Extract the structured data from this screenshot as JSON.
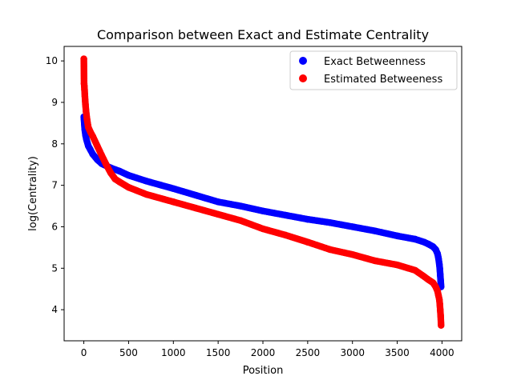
{
  "chart_data": {
    "type": "scatter",
    "title": "Comparison between Exact and Estimate Centrality",
    "xlabel": "Position",
    "ylabel": "log(Centrality)",
    "xlim": [
      -220,
      4220
    ],
    "ylim": [
      3.25,
      10.35
    ],
    "x_ticks": [
      0,
      500,
      1000,
      1500,
      2000,
      2500,
      3000,
      3500,
      4000
    ],
    "y_ticks": [
      4,
      5,
      6,
      7,
      8,
      9,
      10
    ],
    "legend_position": "top-right",
    "grid": false,
    "series": [
      {
        "name": "Exact Betweenness",
        "color": "#0000ff",
        "x": [
          0,
          5,
          10,
          20,
          30,
          50,
          75,
          100,
          150,
          200,
          250,
          300,
          350,
          400,
          500,
          700,
          1000,
          1250,
          1500,
          1750,
          2000,
          2250,
          2500,
          2750,
          3000,
          3250,
          3500,
          3700,
          3800,
          3850,
          3900,
          3930,
          3950,
          3960,
          3970,
          3975,
          3980,
          3985,
          3990
        ],
        "y": [
          8.65,
          8.5,
          8.35,
          8.2,
          8.1,
          7.95,
          7.85,
          7.75,
          7.62,
          7.52,
          7.47,
          7.42,
          7.38,
          7.34,
          7.24,
          7.1,
          6.92,
          6.76,
          6.6,
          6.5,
          6.38,
          6.28,
          6.18,
          6.1,
          6.0,
          5.9,
          5.78,
          5.7,
          5.63,
          5.58,
          5.52,
          5.45,
          5.35,
          5.25,
          5.1,
          5.0,
          4.85,
          4.7,
          4.55
        ]
      },
      {
        "name": "Estimated Betweeness",
        "color": "#ff0000",
        "x": [
          0,
          3,
          5,
          8,
          12,
          18,
          25,
          35,
          50,
          75,
          100,
          150,
          200,
          250,
          300,
          350,
          400,
          500,
          700,
          1000,
          1250,
          1500,
          1750,
          2000,
          2250,
          2500,
          2750,
          3000,
          3250,
          3500,
          3700,
          3800,
          3850,
          3900,
          3930,
          3950,
          3960,
          3970,
          3975,
          3980,
          3985,
          3990
        ],
        "y": [
          10.05,
          9.45,
          9.4,
          9.3,
          9.15,
          8.95,
          8.78,
          8.6,
          8.4,
          8.28,
          8.18,
          7.95,
          7.72,
          7.5,
          7.3,
          7.15,
          7.08,
          6.95,
          6.78,
          6.6,
          6.45,
          6.3,
          6.15,
          5.95,
          5.8,
          5.63,
          5.45,
          5.33,
          5.18,
          5.08,
          4.95,
          4.8,
          4.72,
          4.65,
          4.55,
          4.45,
          4.35,
          4.25,
          4.15,
          4.0,
          3.85,
          3.62
        ]
      }
    ]
  }
}
